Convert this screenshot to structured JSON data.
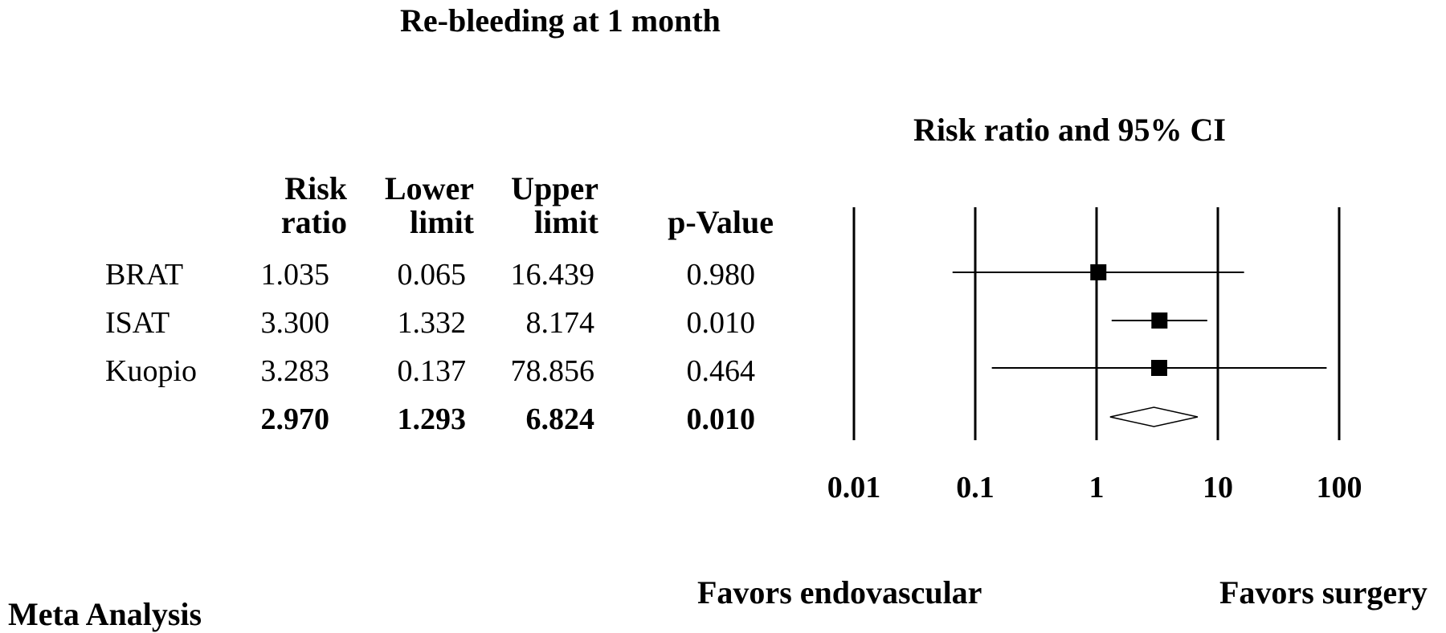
{
  "title": "Re-bleeding at 1 month",
  "table": {
    "headers": {
      "risk_ratio": [
        "Risk",
        "ratio"
      ],
      "lower_limit": [
        "Lower",
        "limit"
      ],
      "upper_limit": [
        "Upper",
        "limit"
      ],
      "p_value": "p-Value"
    },
    "rows": [
      {
        "study": "BRAT",
        "risk_ratio": "1.035",
        "lower": "0.065",
        "upper": "16.439",
        "p": "0.980"
      },
      {
        "study": "ISAT",
        "risk_ratio": "3.300",
        "lower": "1.332",
        "upper": "8.174",
        "p": "0.010"
      },
      {
        "study": "Kuopio",
        "risk_ratio": "3.283",
        "lower": "0.137",
        "upper": "78.856",
        "p": "0.464"
      }
    ],
    "summary": {
      "risk_ratio": "2.970",
      "lower": "1.293",
      "upper": "6.824",
      "p": "0.010"
    }
  },
  "footer_label": "Meta Analysis",
  "chart_data": {
    "type": "forest",
    "title": "Risk ratio and 95% CI",
    "x_scale": "log",
    "xlim": [
      0.01,
      100
    ],
    "x_ticks": [
      "0.01",
      "0.1",
      "1",
      "10",
      "100"
    ],
    "x_tick_values": [
      0.01,
      0.1,
      1,
      10,
      100
    ],
    "studies": [
      {
        "name": "BRAT",
        "estimate": 1.035,
        "lower": 0.065,
        "upper": 16.439
      },
      {
        "name": "ISAT",
        "estimate": 3.3,
        "lower": 1.332,
        "upper": 8.174
      },
      {
        "name": "Kuopio",
        "estimate": 3.283,
        "lower": 0.137,
        "upper": 78.856
      }
    ],
    "summary": {
      "estimate": 2.97,
      "lower": 1.293,
      "upper": 6.824
    },
    "favors_left": "Favors endovascular",
    "favors_right": "Favors surgery"
  }
}
